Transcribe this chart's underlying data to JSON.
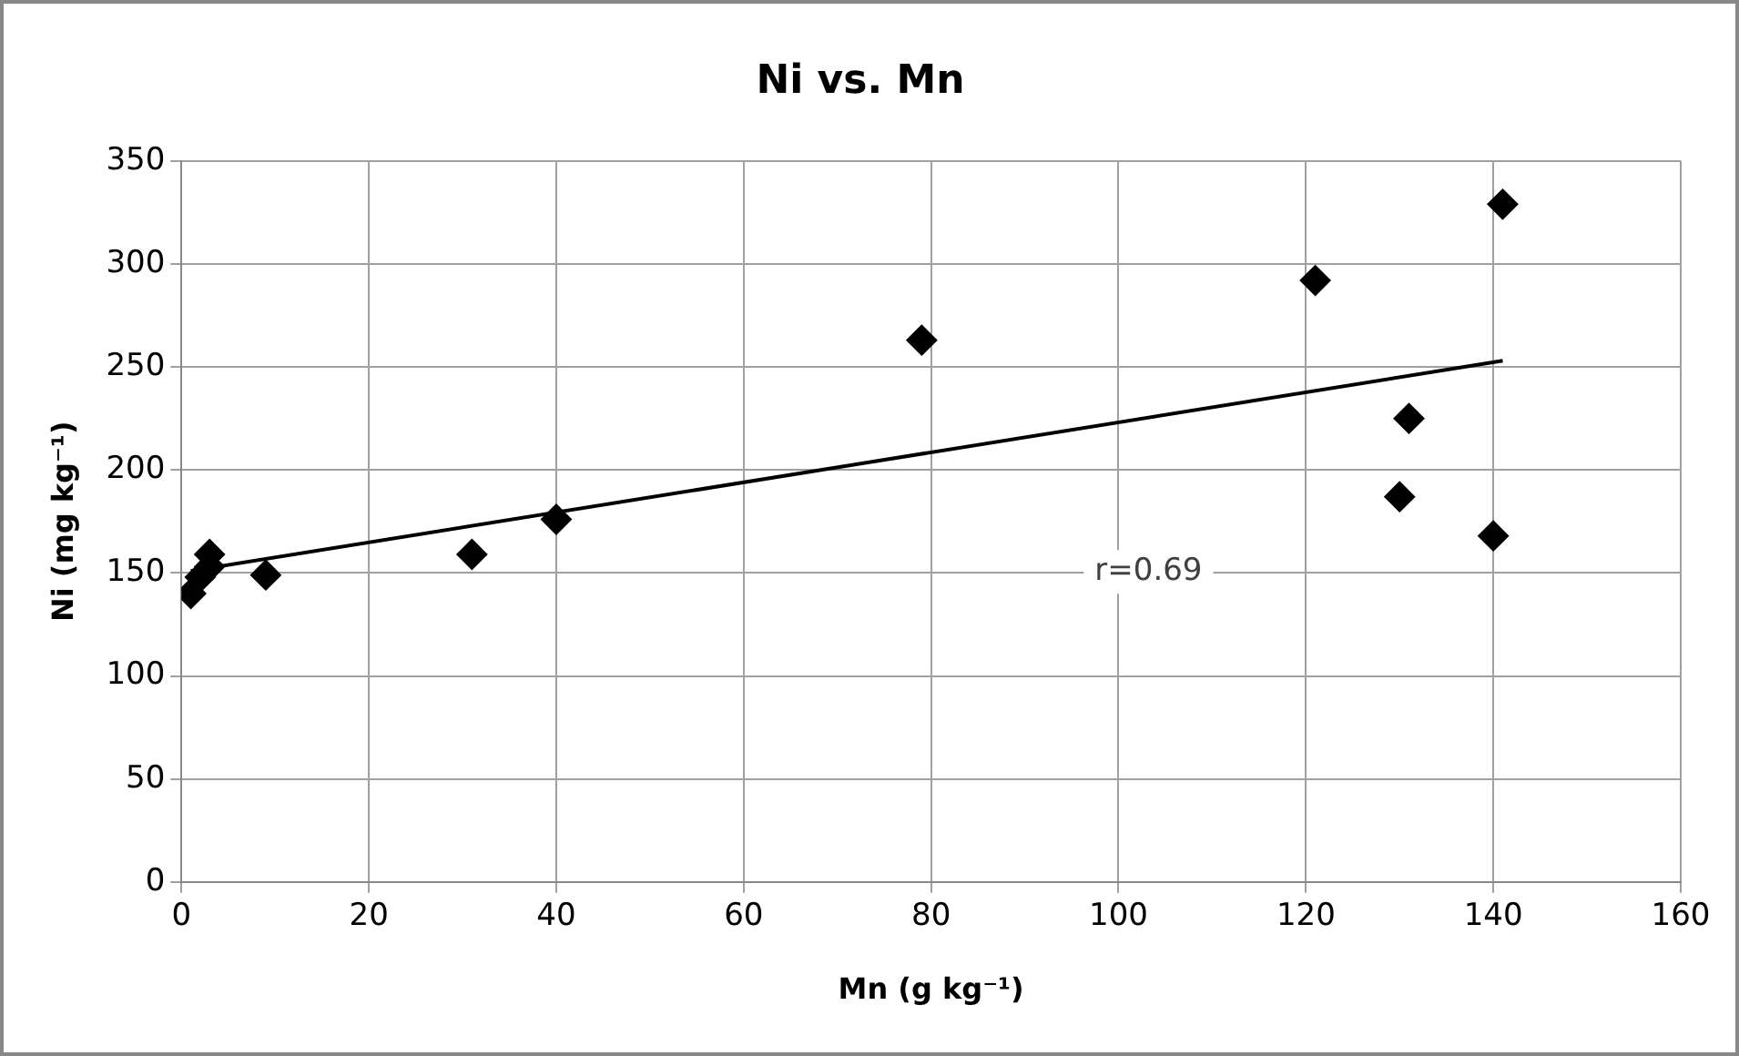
{
  "chart_data": {
    "type": "scatter",
    "title": "Ni vs. Mn",
    "xlabel": "Mn (g kg⁻¹)",
    "ylabel": "Ni (mg kg⁻¹)",
    "xlim": [
      0,
      160
    ],
    "xticks": [
      0,
      20,
      40,
      60,
      80,
      100,
      120,
      140,
      160
    ],
    "ylim": [
      0,
      350
    ],
    "yticks": [
      0,
      50,
      100,
      150,
      200,
      250,
      300,
      350
    ],
    "grid": true,
    "legend": false,
    "annotations": [
      "r=0.69"
    ],
    "series": [
      {
        "marker": "diamond",
        "color": "#000000",
        "x": [
          1,
          2,
          3,
          3,
          9,
          31,
          40,
          79,
          121,
          130,
          131,
          140,
          141
        ],
        "values": [
          140,
          148,
          153,
          159,
          149,
          159,
          176,
          263,
          292,
          187,
          225,
          168,
          329
        ]
      },
      {
        "type": "line",
        "marker": "none",
        "color": "#000000",
        "x": [
          1,
          141
        ],
        "values": [
          151,
          253
        ]
      }
    ]
  }
}
